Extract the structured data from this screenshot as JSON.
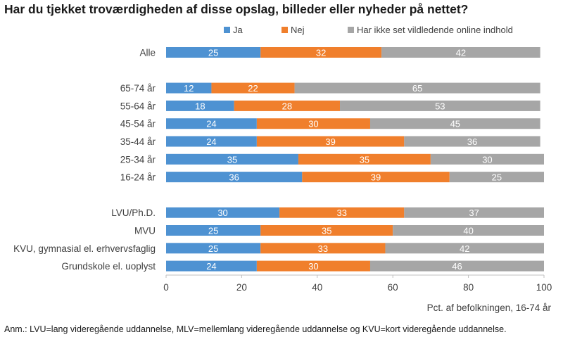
{
  "title": "Har du tjekket troværdigheden af disse opslag, billeder eller nyheder på nettet?",
  "footnote": "Anm.: LVU=lang videregående uddannelse, MLV=mellemlang videregående uddannelse og KVU=kort videregående uddannelse.",
  "colors": {
    "ja": "#4e92d2",
    "nej": "#f07f2c",
    "ikke": "#a6a6a6",
    "axis": "#595959",
    "text": "#404040"
  },
  "chart_data": {
    "type": "bar",
    "orientation": "horizontal",
    "stacked": true,
    "title": "Har du tjekket troværdigheden af disse opslag, billeder eller nyheder på nettet?",
    "xlabel": "Pct. af befolkningen, 16-74 år",
    "ylabel": "",
    "xlim": [
      0,
      100
    ],
    "xticks": [
      0,
      20,
      40,
      60,
      80,
      100
    ],
    "grid": false,
    "legend": "top",
    "categories": [
      "Alle",
      "",
      "65-74 år",
      "55-64 år",
      "45-54 år",
      "35-44 år",
      "25-34 år",
      "16-24 år",
      "",
      "LVU/Ph.D.",
      "MVU",
      "KVU, gymnasial el. erhvervsfaglig",
      "Grundskole el. uoplyst"
    ],
    "series": [
      {
        "name": "Ja",
        "color": "#4e92d2",
        "values": [
          25,
          null,
          12,
          18,
          24,
          24,
          35,
          36,
          null,
          30,
          25,
          25,
          24
        ]
      },
      {
        "name": "Nej",
        "color": "#f07f2c",
        "values": [
          32,
          null,
          22,
          28,
          30,
          39,
          35,
          39,
          null,
          33,
          35,
          33,
          30
        ]
      },
      {
        "name": "Har ikke set vildledende online indhold",
        "color": "#a6a6a6",
        "values": [
          42,
          null,
          65,
          53,
          45,
          36,
          30,
          25,
          null,
          37,
          40,
          42,
          46
        ]
      }
    ]
  }
}
